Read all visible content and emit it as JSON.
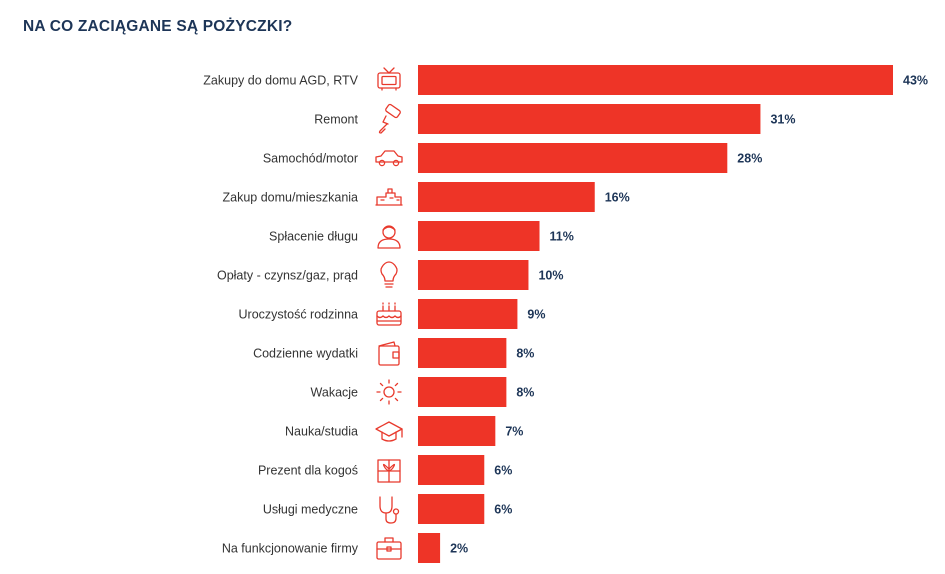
{
  "title": "NA CO ZACIĄGANE SĄ POŻYCZKI?",
  "colors": {
    "bar": "#ee3427",
    "icon": "#e8392c",
    "value_text": "#1d3557",
    "label_text": "#333333"
  },
  "chart_data": {
    "type": "bar",
    "orientation": "horizontal",
    "title": "NA CO ZACIĄGANE SĄ POŻYCZKI?",
    "xlim": [
      0,
      43
    ],
    "grid": false,
    "categories": [
      "Zakupy do domu AGD, RTV",
      "Remont",
      "Samochód/motor",
      "Zakup domu/mieszkania",
      "Spłacenie długu",
      "Opłaty - czynsz/gaz, prąd",
      "Uroczystość rodzinna",
      "Codzienne wydatki",
      "Wakacje",
      "Nauka/studia",
      "Prezent dla kogoś",
      "Usługi medyczne",
      "Na funkcjonowanie firmy"
    ],
    "values": [
      43,
      31,
      28,
      16,
      11,
      10,
      9,
      8,
      8,
      7,
      6,
      6,
      2
    ],
    "value_labels": [
      "43%",
      "31%",
      "28%",
      "16%",
      "11%",
      "10%",
      "9%",
      "8%",
      "8%",
      "7%",
      "6%",
      "6%",
      "2%"
    ],
    "icons": [
      "tv-icon",
      "paint-roller-icon",
      "car-icon",
      "house-icon",
      "person-icon",
      "lightbulb-icon",
      "cake-icon",
      "wallet-icon",
      "sun-icon",
      "graduation-cap-icon",
      "gift-icon",
      "stethoscope-icon",
      "briefcase-icon"
    ]
  }
}
